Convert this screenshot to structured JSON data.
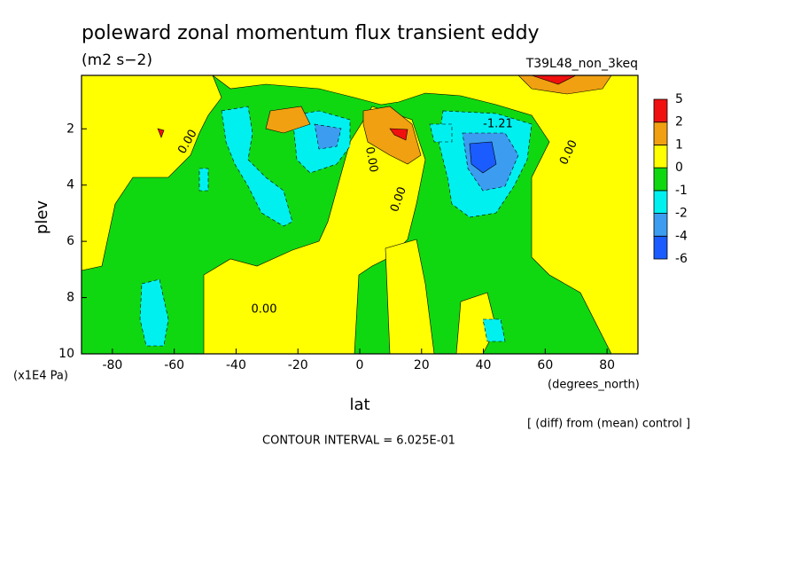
{
  "chart_data": {
    "type": "contour",
    "title": "poleward zonal momentum flux transient eddy",
    "subtitle": "(m2 s−2)",
    "run_label": "T39L48_non_3keq",
    "x_label": "lat",
    "x_unit": "(degrees_north)",
    "y_label": "plev",
    "y_unit": "(x1E4 Pa)",
    "xlim": [
      -90,
      90
    ],
    "xticks": [
      -80,
      -60,
      -40,
      -20,
      0,
      20,
      40,
      60,
      80
    ],
    "ylim": [
      10,
      0.1
    ],
    "yticks": [
      2,
      4,
      6,
      8,
      10
    ],
    "levels": [
      -6,
      -4,
      -2,
      -1,
      0,
      1,
      2,
      5
    ],
    "colors": [
      "#1a5cff",
      "#3c9cf0",
      "#00f0f0",
      "#10d810",
      "#ffff00",
      "#f0a010",
      "#f01010"
    ],
    "contour_labels": [
      "0.00",
      "0.00",
      "0.00",
      "0.00",
      "0.00",
      "-1.21"
    ],
    "contour_interval": "CONTOUR INTERVAL = 6.025E-01",
    "note": "[ (diff) from (mean) control ]"
  }
}
